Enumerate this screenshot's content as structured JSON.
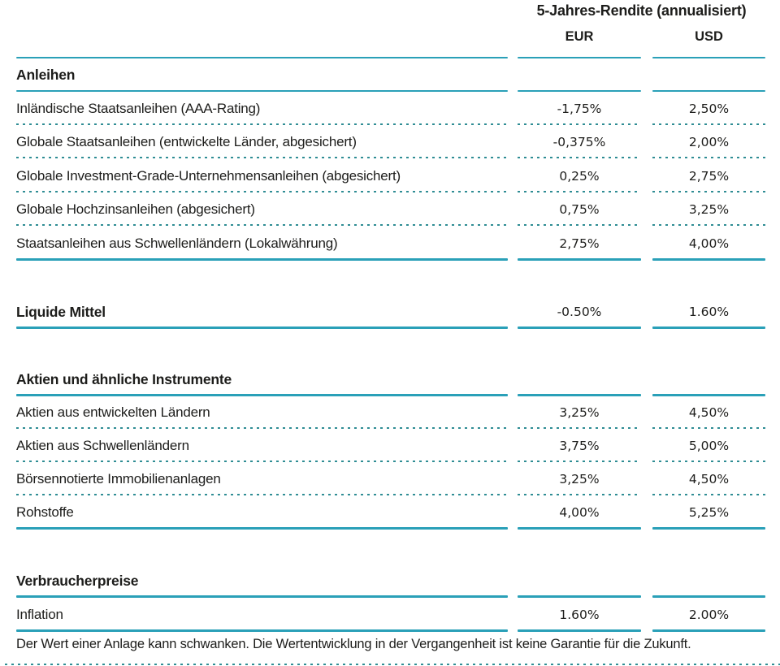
{
  "header": {
    "title": "5-Jahres-Rendite (annualisiert)",
    "col_eur": "EUR",
    "col_usd": "USD"
  },
  "colors": {
    "accent_rule": "#2aa0b8",
    "dotted_rule": "#2f8d94",
    "text": "#1d1d1b",
    "background": "#ffffff"
  },
  "sections": [
    {
      "title": "Anleihen",
      "rows": [
        {
          "label": "Inländische Staatsanleihen (AAA-Rating)",
          "eur": "-1,75%",
          "usd": "2,50%"
        },
        {
          "label": "Globale Staatsanleihen (entwickelte Länder, abgesichert)",
          "eur": "-0,375%",
          "usd": "2,00%"
        },
        {
          "label": "Globale Investment-Grade-Unternehmensanleihen (abgesichert)",
          "eur": "0,25%",
          "usd": "2,75%"
        },
        {
          "label": "Globale Hochzinsanleihen (abgesichert)",
          "eur": "0,75%",
          "usd": "3,25%"
        },
        {
          "label": "Staatsanleihen aus Schwellenländern (Lokalwährung)",
          "eur": "2,75%",
          "usd": "4,00%"
        }
      ]
    },
    {
      "title": "Liquide Mittel",
      "eur": "-0.50%",
      "usd": "1.60%",
      "rows": []
    },
    {
      "title": "Aktien und ähnliche Instrumente",
      "rows": [
        {
          "label": "Aktien aus entwickelten Ländern",
          "eur": "3,25%",
          "usd": "4,50%"
        },
        {
          "label": "Aktien aus Schwellenländern",
          "eur": "3,75%",
          "usd": "5,00%"
        },
        {
          "label": "Börsennotierte Immobilienanlagen",
          "eur": "3,25%",
          "usd": "4,50%"
        },
        {
          "label": "Rohstoffe",
          "eur": "4,00%",
          "usd": "5,25%"
        }
      ]
    },
    {
      "title": "Verbraucherpreise",
      "rows": [
        {
          "label": "Inflation",
          "eur": "1.60%",
          "usd": "2.00%"
        }
      ]
    }
  ],
  "footer": {
    "disclaimer": "Der Wert einer Anlage kann schwanken. Die Wertentwicklung in der Vergangenheit ist keine Garantie für die Zukunft."
  }
}
